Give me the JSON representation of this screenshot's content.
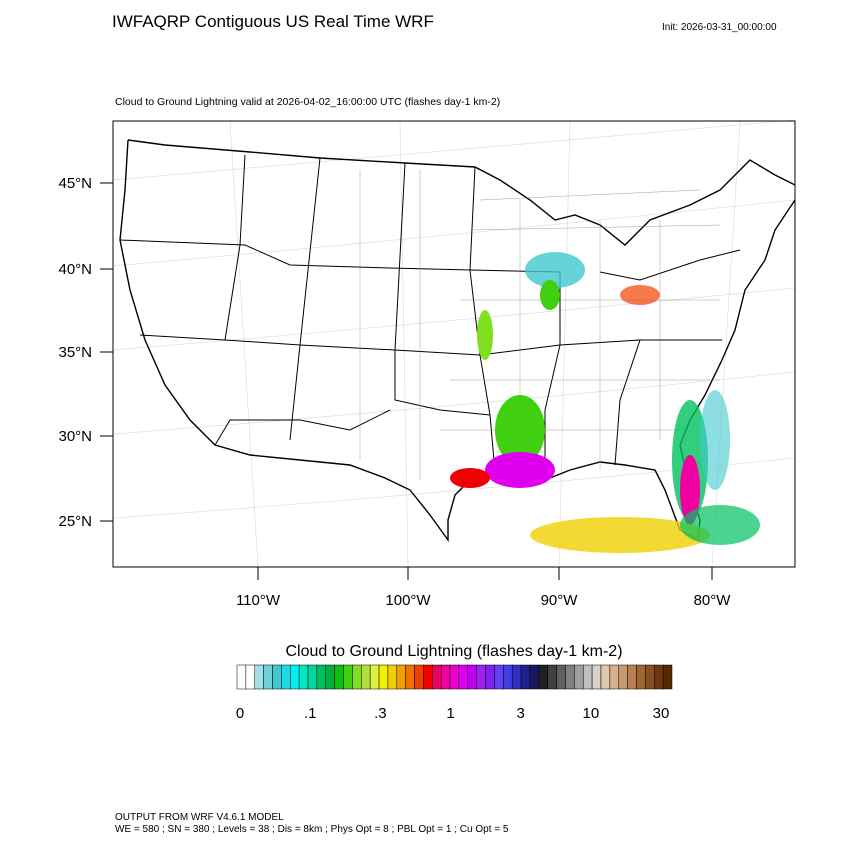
{
  "header": {
    "title": "IWFAQRP Contiguous US Real Time WRF",
    "init": "Init: 2026-03-31_00:00:00",
    "subtitle": "Cloud to Ground Lightning valid at 2026-04-02_16:00:00 UTC   (flashes day-1 km-2)"
  },
  "map": {
    "lat_labels": [
      "45°N",
      "40°N",
      "35°N",
      "30°N",
      "25°N"
    ],
    "lon_labels": [
      "110°W",
      "100°W",
      "90°W",
      "80°W"
    ]
  },
  "colorbar": {
    "title": "Cloud to Ground Lightning  (flashes day-1 km-2)",
    "labels": [
      "0",
      ".1",
      ".3",
      "1",
      "3",
      "10",
      "30"
    ],
    "colors": [
      "#ffffff",
      "#ffffff",
      "#a0e0e8",
      "#70d0d8",
      "#40c8d0",
      "#20d8e0",
      "#00f0f0",
      "#00e8c0",
      "#00d8a0",
      "#00c060",
      "#00b040",
      "#10c010",
      "#40d010",
      "#80e020",
      "#b0e040",
      "#e0f040",
      "#f0f000",
      "#f0d000",
      "#f0a000",
      "#f07000",
      "#f04000",
      "#f00000",
      "#f00060",
      "#f000a0",
      "#f000d0",
      "#e000f0",
      "#c000f0",
      "#a020f0",
      "#8020f0",
      "#6040f0",
      "#4040e0",
      "#3030c0",
      "#202090",
      "#181860",
      "#202020",
      "#404040",
      "#606060",
      "#808080",
      "#a0a0a0",
      "#c0c0c0",
      "#d8d0c8",
      "#e0c8b0",
      "#d8b090",
      "#c89870",
      "#b88050",
      "#a06830",
      "#885020",
      "#703810",
      "#582800"
    ]
  },
  "footer": {
    "line1": "OUTPUT FROM WRF V4.6.1 MODEL",
    "line2": "WE = 580 ; SN = 380 ; Levels = 38 ; Dis = 8km ; Phys Opt = 8 ; PBL Opt = 1 ; Cu Opt = 5"
  }
}
